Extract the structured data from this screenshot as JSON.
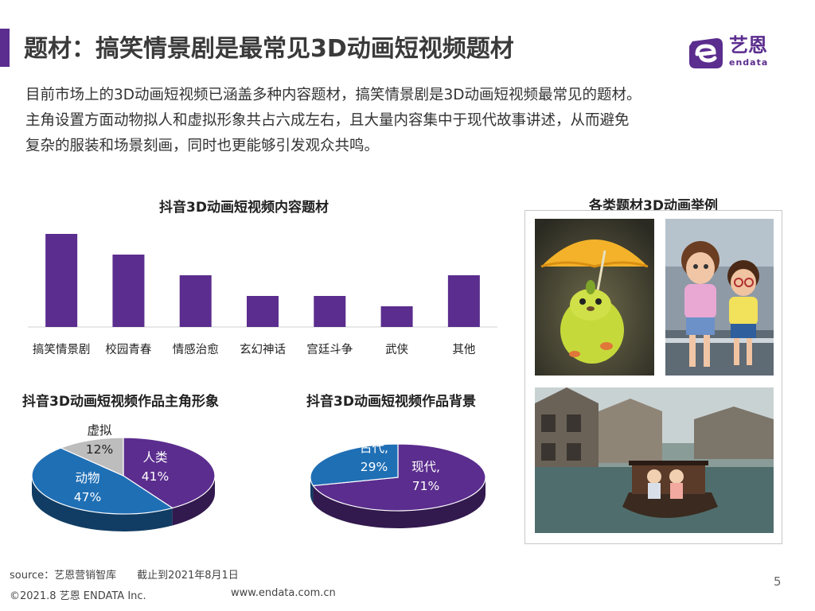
{
  "slide": {
    "title": "题材：搞笑情景剧是最常见3D动画短视频题材",
    "intro_lines": [
      "目前市场上的3D动画短视频已涵盖多种内容题材，搞笑情景剧是3D动画短视频最常见的题材。",
      "主角设置方面动物拟人和虚拟形象共占六成左右，且大量内容集中于现代故事讲述，从而避免",
      "复杂的服装和场景刻画，同时也更能够引发观众共鸣。"
    ],
    "logo": {
      "name": "艺恩",
      "sub": "endata"
    },
    "examples_title": "各类题材3D动画举例",
    "page_number": "5"
  },
  "footer": {
    "source": "source：艺恩营销智库　　截止到2021年8月1日",
    "copyright": "©2021.8 艺恩 ENDATA Inc.",
    "url": "www.endata.com.cn"
  },
  "colors": {
    "purple": "#5b2d8e",
    "blue": "#1f6fb5",
    "gray": "#bdbdbd",
    "title": "#3a3a3a"
  },
  "chart_data": [
    {
      "type": "bar",
      "title": "抖音3D动画短视频内容题材",
      "categories": [
        "搞笑情景剧",
        "校园青春",
        "情感治愈",
        "玄幻神话",
        "宫廷斗争",
        "武侠",
        "其他"
      ],
      "values": [
        9,
        7,
        5,
        3,
        3,
        2,
        5
      ],
      "ylim": [
        0,
        10
      ],
      "grid": false,
      "show_value_labels": false
    },
    {
      "type": "pie",
      "title": "抖音3D动画短视频作品主角形象",
      "slices": [
        {
          "label": "人类",
          "value": 41,
          "display": "41%",
          "color": "#5b2d8e"
        },
        {
          "label": "动物",
          "value": 47,
          "display": "47%",
          "color": "#1f6fb5"
        },
        {
          "label": "虚拟",
          "value": 12,
          "display": "12%",
          "color": "#bdbdbd"
        }
      ]
    },
    {
      "type": "pie",
      "title": "抖音3D动画短视频作品背景",
      "slices": [
        {
          "label": "现代,",
          "value": 71,
          "display": "71%",
          "color": "#5b2d8e"
        },
        {
          "label": "古代,",
          "value": 29,
          "display": "29%",
          "color": "#1f6fb5"
        }
      ]
    }
  ]
}
